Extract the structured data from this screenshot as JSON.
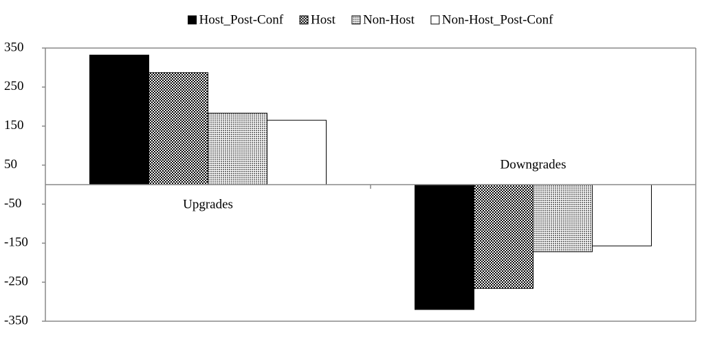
{
  "chart_data": {
    "type": "bar",
    "categories": [
      "Upgrades",
      "Downgrades"
    ],
    "series": [
      {
        "name": "Host_Post-Conf",
        "color": "#000000",
        "pattern": "solid",
        "values": [
          332,
          -320
        ]
      },
      {
        "name": "Host",
        "color": "#000000",
        "pattern": "dense-dots",
        "values": [
          287,
          -266
        ]
      },
      {
        "name": "Non-Host",
        "color": "#777777",
        "pattern": "fine-dots",
        "values": [
          183,
          -172
        ]
      },
      {
        "name": "Non-Host_Post-Conf",
        "color": "#ffffff",
        "pattern": "solid",
        "values": [
          165,
          -157
        ]
      }
    ],
    "ylim": [
      -350,
      350
    ],
    "yticks": [
      350,
      250,
      150,
      50,
      -50,
      -150,
      -250,
      -350
    ],
    "legend": "top"
  }
}
